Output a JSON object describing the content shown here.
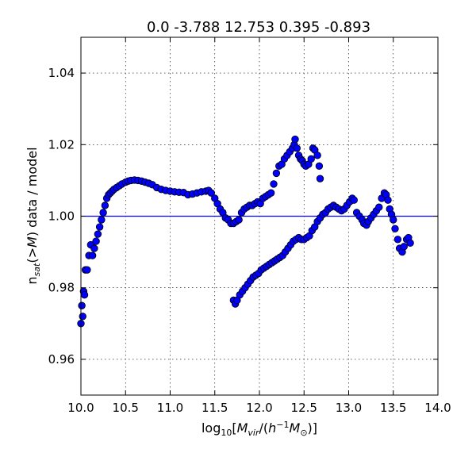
{
  "chart_data": {
    "type": "scatter",
    "title": "0.0 -3.788 12.753 0.395 -0.893",
    "xlabel": "log₁₀[M_vir/(h⁻¹M_⊙)]",
    "ylabel": "n_sat(>M) data / model",
    "xlim": [
      10.0,
      14.0
    ],
    "ylim": [
      0.95,
      1.05
    ],
    "xticks": [
      "10.0",
      "10.5",
      "11.0",
      "11.5",
      "12.0",
      "12.5",
      "13.0",
      "13.5",
      "14.0"
    ],
    "yticks": [
      "0.96",
      "0.98",
      "1.00",
      "1.02",
      "1.04"
    ],
    "grid": true,
    "reference_line": {
      "y": 1.0,
      "color": "#0000ff"
    },
    "marker_color": "#0000ff",
    "series": [
      {
        "points": [
          [
            10.0,
            0.97
          ],
          [
            10.01,
            0.975
          ],
          [
            10.02,
            0.972
          ],
          [
            10.03,
            0.979
          ],
          [
            10.04,
            0.978
          ],
          [
            10.05,
            0.985
          ],
          [
            10.07,
            0.985
          ],
          [
            10.09,
            0.989
          ],
          [
            10.11,
            0.992
          ],
          [
            10.13,
            0.989
          ],
          [
            10.15,
            0.991
          ],
          [
            10.17,
            0.993
          ],
          [
            10.19,
            0.995
          ],
          [
            10.21,
            0.997
          ],
          [
            10.23,
            0.999
          ],
          [
            10.25,
            1.001
          ],
          [
            10.27,
            1.003
          ],
          [
            10.29,
            1.005
          ],
          [
            10.31,
            1.006
          ],
          [
            10.33,
            1.0065
          ],
          [
            10.35,
            1.007
          ],
          [
            10.37,
            1.0075
          ],
          [
            10.4,
            1.008
          ],
          [
            10.43,
            1.0085
          ],
          [
            10.46,
            1.009
          ],
          [
            10.5,
            1.0095
          ],
          [
            10.53,
            1.0098
          ],
          [
            10.56,
            1.01
          ],
          [
            10.6,
            1.0101
          ],
          [
            10.64,
            1.01
          ],
          [
            10.68,
            1.0098
          ],
          [
            10.72,
            1.0095
          ],
          [
            10.76,
            1.0092
          ],
          [
            10.8,
            1.0088
          ],
          [
            10.85,
            1.008
          ],
          [
            10.9,
            1.0075
          ],
          [
            10.95,
            1.0072
          ],
          [
            11.0,
            1.007
          ],
          [
            11.05,
            1.0068
          ],
          [
            11.1,
            1.0067
          ],
          [
            11.15,
            1.0066
          ],
          [
            11.2,
            1.006
          ],
          [
            11.25,
            1.0062
          ],
          [
            11.3,
            1.0065
          ],
          [
            11.35,
            1.0068
          ],
          [
            11.4,
            1.007
          ],
          [
            11.43,
            1.0072
          ],
          [
            11.46,
            1.0065
          ],
          [
            11.5,
            1.005
          ],
          [
            11.53,
            1.0035
          ],
          [
            11.56,
            1.002
          ],
          [
            11.59,
            1.001
          ],
          [
            11.62,
            0.9995
          ],
          [
            11.65,
            0.999
          ],
          [
            11.68,
            0.998
          ],
          [
            11.71,
            0.998
          ],
          [
            11.74,
            0.9985
          ],
          [
            11.77,
            0.999
          ],
          [
            11.8,
            1.001
          ],
          [
            11.83,
            1.002
          ],
          [
            11.86,
            1.0025
          ],
          [
            11.89,
            1.003
          ],
          [
            11.92,
            1.003
          ],
          [
            11.95,
            1.0035
          ],
          [
            11.98,
            1.004
          ],
          [
            12.01,
            1.0035
          ],
          [
            12.04,
            1.005
          ],
          [
            12.07,
            1.0055
          ],
          [
            12.1,
            1.006
          ],
          [
            12.13,
            1.0065
          ],
          [
            12.16,
            1.009
          ],
          [
            12.19,
            1.012
          ],
          [
            12.22,
            1.014
          ],
          [
            12.25,
            1.0145
          ],
          [
            12.28,
            1.016
          ],
          [
            12.31,
            1.017
          ],
          [
            12.34,
            1.018
          ],
          [
            12.37,
            1.019
          ],
          [
            12.39,
            1.02
          ],
          [
            12.4,
            1.0215
          ],
          [
            12.42,
            1.019
          ],
          [
            12.44,
            1.017
          ],
          [
            12.46,
            1.016
          ],
          [
            12.48,
            1.0155
          ],
          [
            12.5,
            1.0145
          ],
          [
            12.52,
            1.014
          ],
          [
            12.55,
            1.0145
          ],
          [
            12.58,
            1.016
          ],
          [
            12.6,
            1.019
          ],
          [
            12.62,
            1.0185
          ],
          [
            12.65,
            1.017
          ],
          [
            12.67,
            1.014
          ],
          [
            12.68,
            1.0105
          ]
        ]
      },
      {
        "points": [
          [
            11.71,
            0.9765
          ],
          [
            11.73,
            0.9755
          ],
          [
            11.75,
            0.9765
          ],
          [
            11.78,
            0.978
          ],
          [
            11.81,
            0.979
          ],
          [
            11.84,
            0.98
          ],
          [
            11.87,
            0.981
          ],
          [
            11.9,
            0.982
          ],
          [
            11.93,
            0.983
          ],
          [
            11.96,
            0.9835
          ],
          [
            11.99,
            0.984
          ],
          [
            12.02,
            0.985
          ],
          [
            12.05,
            0.9855
          ],
          [
            12.08,
            0.986
          ],
          [
            12.11,
            0.9865
          ],
          [
            12.14,
            0.987
          ],
          [
            12.17,
            0.9875
          ],
          [
            12.2,
            0.988
          ],
          [
            12.23,
            0.9885
          ],
          [
            12.26,
            0.989
          ],
          [
            12.29,
            0.99
          ],
          [
            12.32,
            0.991
          ],
          [
            12.35,
            0.992
          ],
          [
            12.38,
            0.993
          ],
          [
            12.41,
            0.9935
          ],
          [
            12.44,
            0.994
          ],
          [
            12.47,
            0.9935
          ],
          [
            12.5,
            0.9935
          ],
          [
            12.53,
            0.994
          ],
          [
            12.56,
            0.9945
          ],
          [
            12.59,
            0.996
          ],
          [
            12.62,
            0.997
          ],
          [
            12.65,
            0.9985
          ],
          [
            12.68,
            0.9995
          ],
          [
            12.71,
            1.0005
          ],
          [
            12.74,
            1.001
          ],
          [
            12.77,
            1.002
          ],
          [
            12.8,
            1.0025
          ],
          [
            12.83,
            1.003
          ],
          [
            12.86,
            1.0025
          ],
          [
            12.89,
            1.002
          ],
          [
            12.92,
            1.0015
          ],
          [
            12.95,
            1.002
          ],
          [
            12.98,
            1.003
          ],
          [
            13.01,
            1.004
          ],
          [
            13.04,
            1.005
          ],
          [
            13.06,
            1.0045
          ],
          [
            13.09,
            1.001
          ],
          [
            13.12,
            1.0
          ],
          [
            13.15,
            0.999
          ],
          [
            13.17,
            0.998
          ],
          [
            13.2,
            0.9975
          ],
          [
            13.22,
            0.9985
          ],
          [
            13.25,
            0.9995
          ],
          [
            13.28,
            1.0005
          ],
          [
            13.31,
            1.0015
          ],
          [
            13.34,
            1.0025
          ],
          [
            13.37,
            1.005
          ],
          [
            13.4,
            1.0065
          ],
          [
            13.42,
            1.006
          ],
          [
            13.44,
            1.0045
          ],
          [
            13.46,
            1.002
          ],
          [
            13.48,
            1.0005
          ],
          [
            13.5,
            0.999
          ],
          [
            13.52,
            0.9965
          ],
          [
            13.55,
            0.9935
          ],
          [
            13.57,
            0.991
          ],
          [
            13.6,
            0.99
          ],
          [
            13.62,
            0.9915
          ],
          [
            13.65,
            0.9935
          ],
          [
            13.67,
            0.994
          ],
          [
            13.69,
            0.9925
          ]
        ]
      }
    ]
  }
}
